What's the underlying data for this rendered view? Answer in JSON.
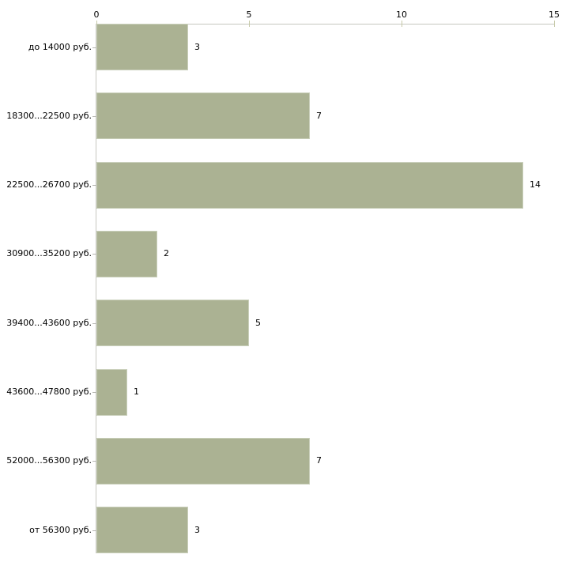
{
  "chart_data": {
    "type": "bar",
    "orientation": "horizontal",
    "title": "",
    "xlabel": "",
    "ylabel": "",
    "grid": false,
    "legend": false,
    "x_axis": {
      "position": "top",
      "min": 0,
      "max": 15,
      "ticks": [
        "0",
        "5",
        "10",
        "15"
      ],
      "tick_values": [
        0,
        5,
        10,
        15
      ]
    },
    "categories": [
      "до 14000 руб.",
      "18300...22500 руб.",
      "22500...26700 руб.",
      "30900...35200 руб.",
      "39400...43600 руб.",
      "43600...47800 руб.",
      "52000...56300 руб.",
      "от 56300 руб."
    ],
    "values": [
      3,
      7,
      14,
      2,
      5,
      1,
      7,
      3
    ],
    "value_labels": [
      "3",
      "7",
      "14",
      "2",
      "5",
      "1",
      "7",
      "3"
    ],
    "colors": {
      "bar_fill": "#abb293",
      "bar_border": "#c9cfba",
      "axis_line": "#c6c8c0",
      "x_tick": "#c6c9a8",
      "category_tick": "#b5b5b0",
      "text": "#000000",
      "background": "#ffffff"
    }
  }
}
